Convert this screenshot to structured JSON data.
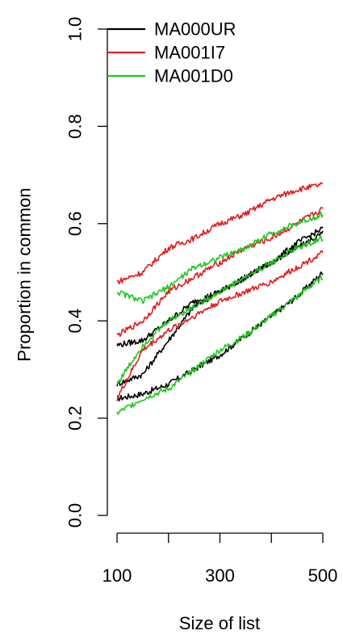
{
  "chart_data": {
    "type": "line",
    "title": "",
    "xlabel": "Size of list",
    "ylabel": "Proportion in common",
    "xlim": [
      100,
      500
    ],
    "ylim": [
      0.0,
      1.0
    ],
    "x_ticks": [
      100,
      200,
      300,
      400,
      500
    ],
    "x_tick_labels": [
      "100",
      "300",
      "500"
    ],
    "y_ticks": [
      0.0,
      0.2,
      0.4,
      0.6,
      0.8,
      1.0
    ],
    "y_tick_labels": [
      "0.0",
      "0.2",
      "0.4",
      "0.6",
      "0.8",
      "1.0"
    ],
    "grid": false,
    "legend_position": "top-left",
    "legend": [
      {
        "label": "MA000UR",
        "color": "#000000"
      },
      {
        "label": "MA001I7",
        "color": "#e41a1c"
      },
      {
        "label": "MA001D0",
        "color": "#1fc71f"
      }
    ],
    "series": [
      {
        "group": 0,
        "color": "#000000",
        "x": [
          100,
          150,
          200,
          250,
          300,
          350,
          400,
          450,
          500
        ],
        "y": [
          0.24,
          0.25,
          0.27,
          0.3,
          0.33,
          0.37,
          0.41,
          0.45,
          0.5
        ]
      },
      {
        "group": 0,
        "color": "#000000",
        "x": [
          100,
          150,
          200,
          250,
          300,
          350,
          400,
          450,
          500
        ],
        "y": [
          0.27,
          0.29,
          0.36,
          0.43,
          0.46,
          0.49,
          0.52,
          0.55,
          0.58
        ]
      },
      {
        "group": 0,
        "color": "#000000",
        "x": [
          100,
          150,
          200,
          250,
          300,
          350,
          400,
          450,
          500
        ],
        "y": [
          0.35,
          0.36,
          0.4,
          0.44,
          0.46,
          0.49,
          0.52,
          0.56,
          0.59
        ]
      },
      {
        "group": 1,
        "color": "#e41a1c",
        "x": [
          100,
          150,
          200,
          250,
          300,
          350,
          400,
          450,
          500
        ],
        "y": [
          0.48,
          0.5,
          0.55,
          0.57,
          0.6,
          0.62,
          0.65,
          0.67,
          0.68
        ]
      },
      {
        "group": 1,
        "color": "#e41a1c",
        "x": [
          100,
          150,
          200,
          250,
          300,
          350,
          400,
          450,
          500
        ],
        "y": [
          0.37,
          0.4,
          0.46,
          0.49,
          0.52,
          0.55,
          0.57,
          0.6,
          0.63
        ]
      },
      {
        "group": 1,
        "color": "#e41a1c",
        "x": [
          100,
          150,
          200,
          250,
          300,
          350,
          400,
          450,
          500
        ],
        "y": [
          0.24,
          0.34,
          0.38,
          0.41,
          0.44,
          0.46,
          0.48,
          0.51,
          0.54
        ]
      },
      {
        "group": 2,
        "color": "#1fc71f",
        "x": [
          100,
          150,
          200,
          250,
          300,
          350,
          400,
          450,
          500
        ],
        "y": [
          0.46,
          0.44,
          0.47,
          0.51,
          0.53,
          0.55,
          0.58,
          0.6,
          0.62
        ]
      },
      {
        "group": 2,
        "color": "#1fc71f",
        "x": [
          100,
          150,
          200,
          250,
          300,
          350,
          400,
          450,
          500
        ],
        "y": [
          0.27,
          0.35,
          0.4,
          0.43,
          0.46,
          0.49,
          0.52,
          0.55,
          0.57
        ]
      },
      {
        "group": 2,
        "color": "#1fc71f",
        "x": [
          100,
          150,
          200,
          250,
          300,
          350,
          400,
          450,
          500
        ],
        "y": [
          0.21,
          0.24,
          0.26,
          0.3,
          0.34,
          0.37,
          0.41,
          0.45,
          0.49
        ]
      }
    ]
  }
}
